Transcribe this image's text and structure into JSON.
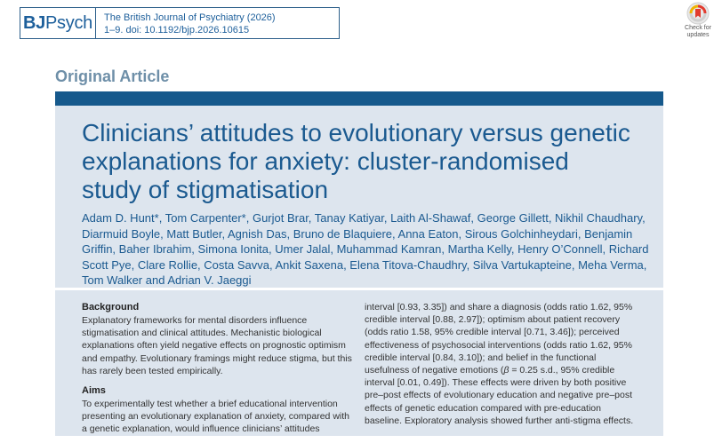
{
  "journal": {
    "logo_bj": "BJ",
    "logo_psych": "Psych",
    "citation_line1": "The British Journal of Psychiatry (2026)",
    "citation_line2": "1–9. doi: 10.1192/bjp.2026.10615"
  },
  "check_updates": {
    "label_line1": "Check for",
    "label_line2": "updates",
    "icon": "bookmark-refresh-icon"
  },
  "article_type": "Original Article",
  "title": "Clinicians’ attitudes to evolutionary versus genetic explanations for anxiety: cluster-randomised study of stigmatisation",
  "authors": "Adam D. Hunt*, Tom Carpenter*, Gurjot Brar, Tanay Katiyar, Laith Al-Shawaf, George Gillett, Nikhil Chaudhary, Diarmuid Boyle, Matt Butler, Agnish Das, Bruno de Blaquiere, Anna Eaton, Sirous Golchinheydari, Benjamin Griffin, Baher Ibrahim, Simona Ionita, Umer Jalal, Muhammad Kamran, Martha Kelly, Henry O’Connell, Richard Scott Pye, Clare Rollie, Costa Savva, Ankit Saxena, Elena Titova-Chaudhry, Silva Vartukapteine, Meha Verma, Tom Walker and Adrian V. Jaeggi",
  "abstract": {
    "background_heading": "Background",
    "background_text": "Explanatory frameworks for mental disorders influence stigmatisation and clinical attitudes. Mechanistic biological explanations often yield negative effects on prognostic optimism and empathy. Evolutionary framings might reduce stigma, but this has rarely been tested empirically.",
    "aims_heading": "Aims",
    "aims_text": "To experimentally test whether a brief educational intervention presenting an evolutionary explanation of anxiety, compared with a genetic explanation, would influence clinicians’ attitudes",
    "results_text_pre": "interval [0.93, 3.35]) and share a diagnosis (odds ratio 1.62, 95% credible interval [0.88, 2.97]); optimism about patient recovery (odds ratio 1.58, 95% credible interval [0.71, 3.46]); perceived effectiveness of psychosocial interventions (odds ratio 1.62, 95% credible interval [0.84, 3.10]); and belief in the functional usefulness of negative emotions (",
    "results_beta": "β",
    "results_text_post": " = 0.25 s.d., 95% credible interval [0.01, 0.49]). These effects were driven by both positive pre–post effects of evolutionary education and negative pre–post effects of genetic education compared with pre-education baseline. Exploratory analysis showed further anti-stigma effects."
  }
}
